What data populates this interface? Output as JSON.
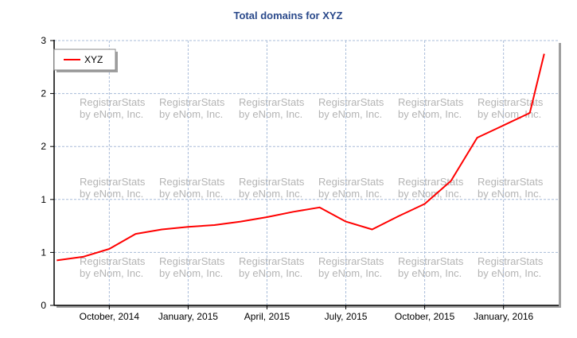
{
  "chart_data": {
    "type": "line",
    "title": "Total domains for XYZ",
    "xlabel": "",
    "ylabel": "",
    "ylim": [
      0,
      3
    ],
    "y_ticks": [
      0,
      0.6,
      1.2,
      1.8,
      2.4,
      3
    ],
    "y_tick_labels": [
      "0",
      "1",
      "1",
      "2",
      "2",
      "3"
    ],
    "x_ticks": [
      2,
      5,
      8,
      11,
      14,
      17
    ],
    "x_tick_labels": [
      "October, 2014",
      "January, 2015",
      "April, 2015",
      "July, 2015",
      "October, 2015",
      "January, 2016"
    ],
    "xlim": [
      -0.1,
      19.1
    ],
    "grid": true,
    "legend": {
      "position": "top-left",
      "entries": [
        "XYZ"
      ]
    },
    "watermark": [
      "RegistrarStats",
      "by eNom, Inc."
    ],
    "series": [
      {
        "name": "XYZ",
        "color": "#ff0000",
        "x": [
          0,
          1,
          2,
          3,
          4,
          5,
          6,
          7,
          8,
          9,
          10,
          11,
          12,
          13,
          14,
          15,
          16,
          17,
          18,
          18.55
        ],
        "values": [
          0.51,
          0.55,
          0.64,
          0.81,
          0.86,
          0.89,
          0.91,
          0.95,
          1.0,
          1.06,
          1.11,
          0.95,
          0.86,
          1.01,
          1.15,
          1.41,
          1.9,
          2.04,
          2.18,
          2.85
        ]
      }
    ]
  }
}
